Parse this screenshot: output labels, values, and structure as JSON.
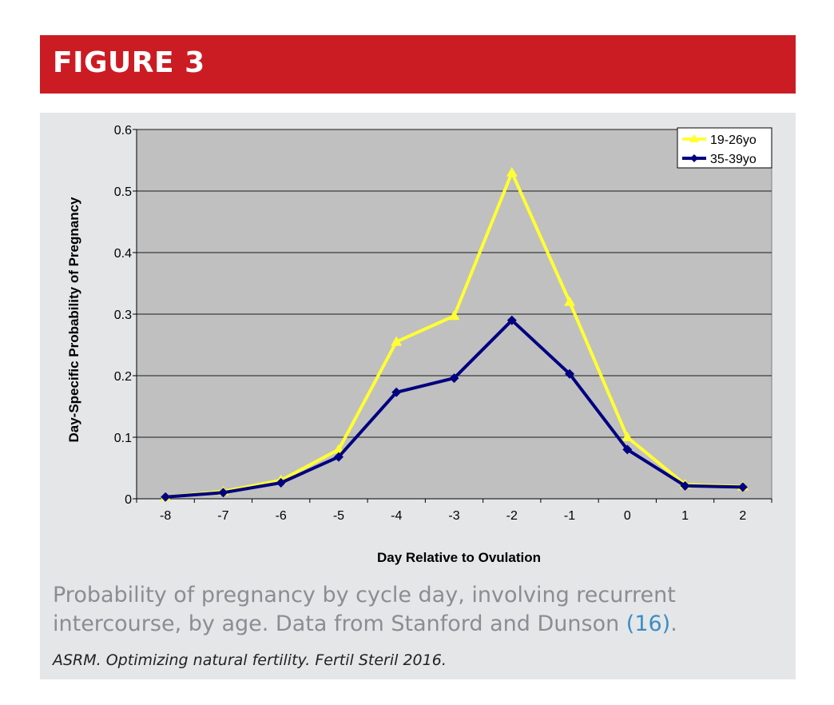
{
  "figure": {
    "title": "FIGURE 3",
    "caption_main": "Probability of pregnancy by cycle day, involving recurrent intercourse, by age. Data from Stanford and Dunson ",
    "caption_ref": "(16)",
    "caption_end": ".",
    "source": "ASRM. Optimizing natural fertility. Fertil Steril 2016.",
    "colors": {
      "banner": "#cc1c23",
      "panel": "#e5e6e8",
      "plot_area": "#c0c0c0",
      "series_19_26": "#ffff33",
      "series_35_39": "#000080"
    }
  },
  "chart_data": {
    "type": "line",
    "title": "",
    "xlabel": "Day Relative to Ovulation",
    "ylabel": "Day-Specific Probability of Pregnancy",
    "x": [
      -8,
      -7,
      -6,
      -5,
      -4,
      -3,
      -2,
      -1,
      0,
      1,
      2
    ],
    "x_tick_labels": [
      "-8",
      "-7",
      "-6",
      "-5",
      "-4",
      "-3",
      "-2",
      "-1",
      "0",
      "1",
      "2"
    ],
    "y_ticks": [
      0,
      0.1,
      0.2,
      0.3,
      0.4,
      0.5,
      0.6
    ],
    "y_tick_labels": [
      "0",
      "0.1",
      "0.2",
      "0.3",
      "0.4",
      "0.5",
      "0.6"
    ],
    "ylim": [
      0,
      0.6
    ],
    "grid": "horizontal",
    "legend": "top-right",
    "series": [
      {
        "name": "19-26yo",
        "color": "#ffff33",
        "marker": "triangle",
        "values": [
          0.003,
          0.012,
          0.03,
          0.08,
          0.255,
          0.297,
          0.53,
          0.32,
          0.1,
          0.023,
          0.02
        ]
      },
      {
        "name": "35-39yo",
        "color": "#000080",
        "marker": "diamond",
        "values": [
          0.003,
          0.01,
          0.026,
          0.068,
          0.173,
          0.196,
          0.29,
          0.203,
          0.08,
          0.021,
          0.019
        ]
      }
    ]
  }
}
